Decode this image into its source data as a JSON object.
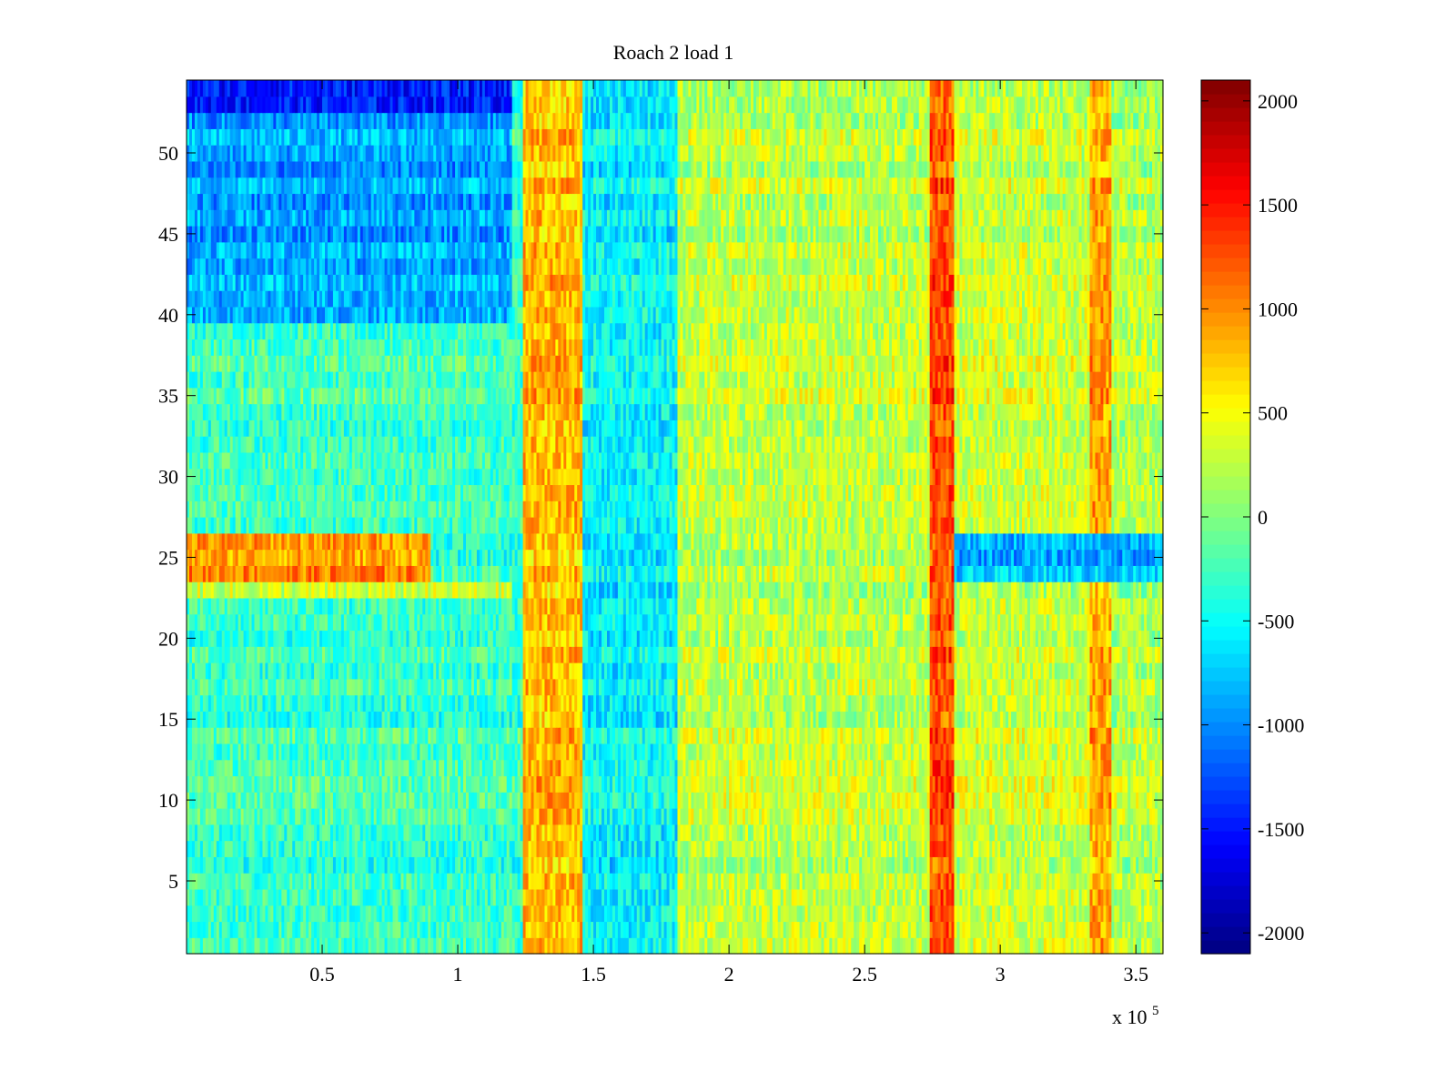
{
  "chart_data": {
    "type": "heatmap",
    "title": "Roach 2 load 1",
    "xlabel": "",
    "ylabel": "",
    "x_exponent_label": "x 10",
    "x_exponent_power": "5",
    "xlim": [
      0,
      3.6
    ],
    "ylim": [
      0.5,
      54.5
    ],
    "x_ticks": [
      0.5,
      1,
      1.5,
      2,
      2.5,
      3,
      3.5
    ],
    "x_tick_labels": [
      "0.5",
      "1",
      "1.5",
      "2",
      "2.5",
      "3",
      "3.5"
    ],
    "y_ticks": [
      5,
      10,
      15,
      20,
      25,
      30,
      35,
      40,
      45,
      50
    ],
    "y_tick_labels": [
      "5",
      "10",
      "15",
      "20",
      "25",
      "30",
      "35",
      "40",
      "45",
      "50"
    ],
    "colormap": "jet",
    "clim": [
      -2100,
      2100
    ],
    "colorbar_ticks": [
      2000,
      1500,
      1000,
      500,
      0,
      -500,
      -1000,
      -1500,
      -2000
    ],
    "colorbar_tick_labels": [
      "2000",
      "1500",
      "1000",
      "500",
      "0",
      "-500",
      "-1000",
      "-1500",
      "-2000"
    ],
    "grid": false,
    "n_rows": 54,
    "baseline_value": -150,
    "column_bands": [
      {
        "x_start": 0.0,
        "x_end": 1.24,
        "value": -300
      },
      {
        "x_start": 1.24,
        "x_end": 1.46,
        "value": 800
      },
      {
        "x_start": 1.46,
        "x_end": 1.81,
        "value": -550
      },
      {
        "x_start": 1.81,
        "x_end": 2.74,
        "value": 250
      },
      {
        "x_start": 2.74,
        "x_end": 2.83,
        "value": 1250
      },
      {
        "x_start": 2.83,
        "x_end": 3.33,
        "value": 300
      },
      {
        "x_start": 3.33,
        "x_end": 3.41,
        "value": 900
      },
      {
        "x_start": 3.41,
        "x_end": 3.6,
        "value": 200
      }
    ],
    "row_bands": [
      {
        "y_start": 24,
        "y_end": 26,
        "x_start": 0.0,
        "x_end": 0.9,
        "value": 1000
      },
      {
        "y_start": 23,
        "y_end": 23,
        "x_start": 0.0,
        "x_end": 1.2,
        "value": 450
      },
      {
        "y_start": 24,
        "y_end": 26,
        "x_start": 2.83,
        "x_end": 3.6,
        "value": -800
      },
      {
        "y_start": 53,
        "y_end": 54,
        "x_start": 0.0,
        "x_end": 1.2,
        "value": -1400
      },
      {
        "y_start": 40,
        "y_end": 52,
        "x_start": 0.0,
        "x_end": 1.2,
        "value": -900
      }
    ]
  }
}
